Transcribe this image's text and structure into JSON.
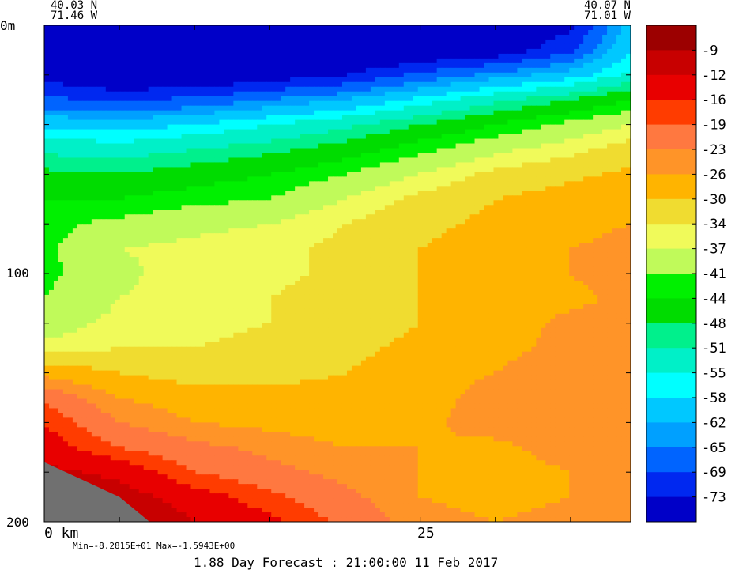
{
  "chart_data": {
    "type": "heatmap",
    "title": "",
    "corner_top_left": {
      "lat": "40.03 N",
      "lon": "71.46 W"
    },
    "corner_top_right": {
      "lat": "40.07 N",
      "lon": "71.01 W"
    },
    "y_axis": {
      "labels": [
        "0m",
        "100",
        "200"
      ],
      "ticks": [
        0,
        20,
        40,
        60,
        80,
        100,
        120,
        140,
        160,
        180,
        200
      ],
      "range": [
        0,
        200
      ],
      "inverted": true
    },
    "x_axis": {
      "labels": [
        "0 km",
        "25"
      ],
      "ticks": [
        0,
        5,
        10,
        15,
        20,
        25,
        30,
        35
      ],
      "range": [
        0,
        39
      ]
    },
    "colorbar": {
      "labels": [
        "-9",
        "-12",
        "-16",
        "-19",
        "-23",
        "-26",
        "-30",
        "-34",
        "-37",
        "-41",
        "-44",
        "-48",
        "-51",
        "-55",
        "-58",
        "-62",
        "-65",
        "-69",
        "-73"
      ],
      "colors": [
        "#9c0000",
        "#c80000",
        "#e80000",
        "#ff3c00",
        "#ff7840",
        "#ff9428",
        "#ffb400",
        "#f0dc30",
        "#f0fa5a",
        "#c0fa5a",
        "#00f000",
        "#00dc00",
        "#00f08c",
        "#00f0c8",
        "#00ffff",
        "#00c8ff",
        "#00a0ff",
        "#0064ff",
        "#0028f0",
        "#0000c8"
      ]
    },
    "levels_top_to_bottom": [
      -5.5,
      -9,
      -12,
      -16,
      -19,
      -23,
      -26,
      -30,
      -34,
      -37,
      -41,
      -44,
      -48,
      -51,
      -55,
      -58,
      -62,
      -65,
      -69,
      -73,
      -80
    ],
    "field": {
      "x_km": [
        0,
        5,
        10,
        15,
        20,
        25,
        30,
        35,
        39
      ],
      "depth_m": [
        0,
        10,
        20,
        30,
        40,
        50,
        60,
        70,
        80,
        90,
        100,
        110,
        120,
        130,
        140,
        150,
        160,
        170,
        180,
        190,
        200
      ],
      "values": [
        [
          -78,
          -80,
          -80,
          -80,
          -80,
          -79,
          -78,
          -74,
          -60
        ],
        [
          -78,
          -80,
          -80,
          -80,
          -80,
          -78,
          -76,
          -70,
          -58
        ],
        [
          -75,
          -78,
          -78,
          -76,
          -73,
          -68,
          -64,
          -60,
          -54
        ],
        [
          -68,
          -70,
          -68,
          -65,
          -62,
          -57,
          -52,
          -48,
          -44
        ],
        [
          -59,
          -60,
          -58,
          -55,
          -52,
          -48,
          -44,
          -40,
          -37
        ],
        [
          -52,
          -53,
          -51,
          -49,
          -46,
          -42,
          -38,
          -35,
          -32
        ],
        [
          -47,
          -48,
          -46,
          -44,
          -41,
          -37,
          -33,
          -31,
          -29
        ],
        [
          -44,
          -44,
          -42,
          -41,
          -37,
          -33,
          -30,
          -28,
          -27
        ],
        [
          -42,
          -40,
          -38,
          -37,
          -34,
          -31,
          -29,
          -27,
          -26
        ],
        [
          -42,
          -37,
          -36,
          -35,
          -33,
          -30,
          -28,
          -26,
          -25
        ],
        [
          -42,
          -38,
          -35,
          -35,
          -33,
          -30,
          -28,
          -26,
          -24
        ],
        [
          -41,
          -37,
          -35,
          -34,
          -32,
          -30,
          -28,
          -27,
          -25
        ],
        [
          -39,
          -36,
          -35,
          -34,
          -32,
          -30,
          -28,
          -25,
          -25
        ],
        [
          -36,
          -34,
          -34,
          -33,
          -31,
          -29,
          -27,
          -25,
          -25
        ],
        [
          -27,
          -30,
          -32,
          -31,
          -30,
          -28,
          -26,
          -24,
          -25
        ],
        [
          -20,
          -26,
          -28,
          -29,
          -29,
          -28,
          -24,
          -23,
          -25
        ],
        [
          -16,
          -23,
          -26,
          -27,
          -28,
          -27,
          -24,
          -23,
          -26
        ],
        [
          -14,
          -19,
          -22,
          -24,
          -26,
          -26,
          -27,
          -24,
          -25
        ],
        [
          -11,
          -13,
          -19,
          -22,
          -24,
          -26,
          -28,
          -26,
          -24
        ],
        [
          -9,
          -10,
          -14,
          -18,
          -22,
          -26,
          -27,
          -26,
          -26
        ],
        [
          -7,
          -7,
          -12,
          -15,
          -20,
          -25,
          -26,
          -25,
          -26
        ]
      ]
    },
    "land_mask": [
      [
        0,
        0.88
      ],
      [
        5,
        0.95
      ],
      [
        7,
        1.0
      ]
    ],
    "land_color": "#707070",
    "footer_stats": "Min=-8.2815E+01  Max=-1.5943E+00",
    "footer_caption": "1.88 Day Forecast : 21:00:00  11 Feb 2017"
  }
}
